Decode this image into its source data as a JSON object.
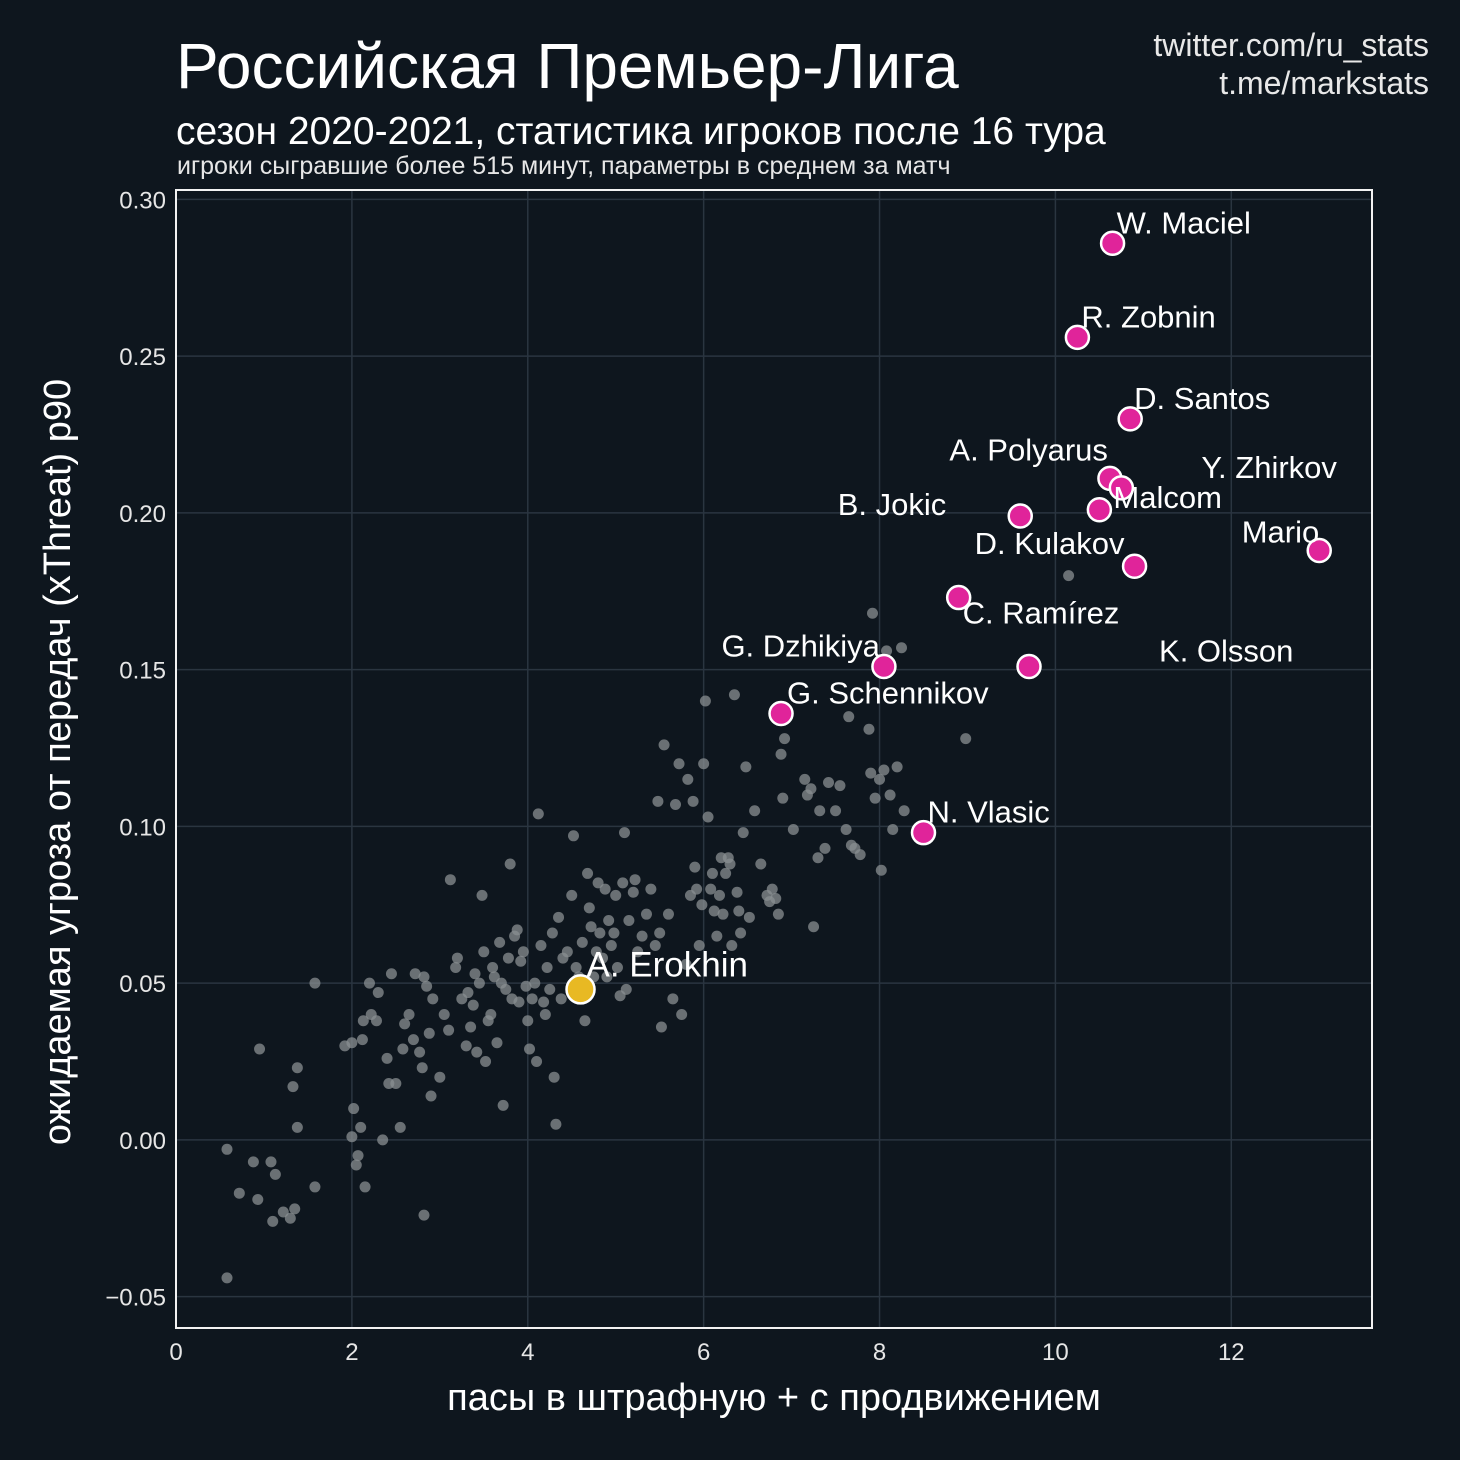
{
  "header": {
    "title": "Российская Премьер-Лига",
    "subtitle": "сезон 2020-2021, статистика игроков после 16 тура",
    "note": "игроки сыгравшие более 515 минут, параметры в среднем за матч",
    "credit_twitter": "twitter.com/ru_stats",
    "credit_telegram": "t.me/markstats"
  },
  "colors": {
    "background": "#0e161e",
    "frame": "#f2f2f2",
    "grid": "#2a3540",
    "background_points": "#8a8f91",
    "highlight": "#e0249a",
    "focus": "#e8b923"
  },
  "chart_data": {
    "type": "scatter",
    "xlabel": "пасы в штрафную + с продвижением",
    "ylabel": "ожидаемая угроза от передач (xThreat) p90",
    "xlim": [
      0,
      13.6
    ],
    "ylim": [
      -0.06,
      0.303
    ],
    "x_ticks": [
      0,
      2,
      4,
      6,
      8,
      10,
      12
    ],
    "y_ticks": [
      -0.05,
      0.0,
      0.05,
      0.1,
      0.15,
      0.2,
      0.25,
      0.3
    ],
    "y_tick_labels": [
      "−0.05",
      "0.00",
      "0.05",
      "0.10",
      "0.15",
      "0.20",
      "0.25",
      "0.30"
    ],
    "grid": true,
    "highlighted": [
      {
        "name": "W. Maciel",
        "x": 10.65,
        "y": 0.286
      },
      {
        "name": "R. Zobnin",
        "x": 10.25,
        "y": 0.256
      },
      {
        "name": "D. Santos",
        "x": 10.85,
        "y": 0.23
      },
      {
        "name": "A. Polyarus",
        "x": 10.62,
        "y": 0.211
      },
      {
        "name": "Y. Zhirkov",
        "x": 10.75,
        "y": 0.208
      },
      {
        "name": "B. Jokic",
        "x": 9.6,
        "y": 0.199
      },
      {
        "name": "Malcom",
        "x": 10.5,
        "y": 0.201
      },
      {
        "name": "Mario",
        "x": 13.0,
        "y": 0.188
      },
      {
        "name": "D. Kulakov",
        "x": 10.9,
        "y": 0.183
      },
      {
        "name": "C. Ramírez",
        "x": 8.9,
        "y": 0.173
      },
      {
        "name": "G. Dzhikiya",
        "x": 8.05,
        "y": 0.151
      },
      {
        "name": "K. Olsson",
        "x": 9.7,
        "y": 0.151
      },
      {
        "name": "G. Schennikov",
        "x": 6.88,
        "y": 0.136
      },
      {
        "name": "N. Vlasic",
        "x": 8.5,
        "y": 0.098
      }
    ],
    "focus": {
      "name": "A. Erokhin",
      "x": 4.6,
      "y": 0.048
    },
    "others": [
      [
        0.58,
        -0.044
      ],
      [
        0.58,
        -0.003
      ],
      [
        0.72,
        -0.017
      ],
      [
        0.88,
        -0.007
      ],
      [
        0.93,
        -0.019
      ],
      [
        0.95,
        0.029
      ],
      [
        1.08,
        -0.007
      ],
      [
        1.1,
        -0.026
      ],
      [
        1.13,
        -0.011
      ],
      [
        1.22,
        -0.023
      ],
      [
        1.3,
        -0.025
      ],
      [
        1.33,
        0.017
      ],
      [
        1.35,
        -0.022
      ],
      [
        1.38,
        0.004
      ],
      [
        1.38,
        0.023
      ],
      [
        1.58,
        0.05
      ],
      [
        1.58,
        -0.015
      ],
      [
        1.92,
        0.03
      ],
      [
        2.0,
        0.031
      ],
      [
        2.0,
        0.001
      ],
      [
        2.02,
        0.01
      ],
      [
        2.05,
        -0.008
      ],
      [
        2.07,
        -0.005
      ],
      [
        2.1,
        0.004
      ],
      [
        2.12,
        0.032
      ],
      [
        2.13,
        0.038
      ],
      [
        2.15,
        -0.015
      ],
      [
        2.2,
        0.05
      ],
      [
        2.22,
        0.04
      ],
      [
        2.28,
        0.038
      ],
      [
        2.3,
        0.047
      ],
      [
        2.35,
        -0.0
      ],
      [
        2.4,
        0.026
      ],
      [
        2.42,
        0.018
      ],
      [
        2.45,
        0.053
      ],
      [
        2.5,
        0.018
      ],
      [
        2.55,
        0.004
      ],
      [
        2.58,
        0.029
      ],
      [
        2.6,
        0.037
      ],
      [
        2.65,
        0.04
      ],
      [
        2.7,
        0.032
      ],
      [
        2.72,
        0.053
      ],
      [
        2.77,
        0.028
      ],
      [
        2.8,
        0.023
      ],
      [
        2.82,
        0.052
      ],
      [
        2.82,
        -0.024
      ],
      [
        2.85,
        0.049
      ],
      [
        2.88,
        0.034
      ],
      [
        2.9,
        0.014
      ],
      [
        2.92,
        0.045
      ],
      [
        3.0,
        0.02
      ],
      [
        3.05,
        0.04
      ],
      [
        3.1,
        0.035
      ],
      [
        3.12,
        0.083
      ],
      [
        3.18,
        0.055
      ],
      [
        3.2,
        0.058
      ],
      [
        3.25,
        0.045
      ],
      [
        3.3,
        0.03
      ],
      [
        3.32,
        0.047
      ],
      [
        3.35,
        0.036
      ],
      [
        3.38,
        0.043
      ],
      [
        3.4,
        0.053
      ],
      [
        3.42,
        0.028
      ],
      [
        3.45,
        0.05
      ],
      [
        3.48,
        0.078
      ],
      [
        3.5,
        0.06
      ],
      [
        3.52,
        0.025
      ],
      [
        3.55,
        0.038
      ],
      [
        3.58,
        0.04
      ],
      [
        3.6,
        0.055
      ],
      [
        3.62,
        0.052
      ],
      [
        3.65,
        0.031
      ],
      [
        3.68,
        0.063
      ],
      [
        3.7,
        0.05
      ],
      [
        3.72,
        0.011
      ],
      [
        3.75,
        0.048
      ],
      [
        3.78,
        0.058
      ],
      [
        3.8,
        0.088
      ],
      [
        3.82,
        0.045
      ],
      [
        3.85,
        0.065
      ],
      [
        3.88,
        0.067
      ],
      [
        3.9,
        0.044
      ],
      [
        3.92,
        0.057
      ],
      [
        3.95,
        0.06
      ],
      [
        3.98,
        0.049
      ],
      [
        4.0,
        0.038
      ],
      [
        4.02,
        0.029
      ],
      [
        4.05,
        0.045
      ],
      [
        4.08,
        0.05
      ],
      [
        4.1,
        0.025
      ],
      [
        4.12,
        0.104
      ],
      [
        4.15,
        0.062
      ],
      [
        4.18,
        0.044
      ],
      [
        4.2,
        0.04
      ],
      [
        4.22,
        0.055
      ],
      [
        4.25,
        0.048
      ],
      [
        4.28,
        0.066
      ],
      [
        4.3,
        0.02
      ],
      [
        4.32,
        0.005
      ],
      [
        4.35,
        0.071
      ],
      [
        4.38,
        0.045
      ],
      [
        4.4,
        0.058
      ],
      [
        4.45,
        0.06
      ],
      [
        4.5,
        0.078
      ],
      [
        4.52,
        0.097
      ],
      [
        4.55,
        0.055
      ],
      [
        4.58,
        0.052
      ],
      [
        4.62,
        0.063
      ],
      [
        4.65,
        0.038
      ],
      [
        4.68,
        0.085
      ],
      [
        4.7,
        0.074
      ],
      [
        4.72,
        0.068
      ],
      [
        4.75,
        0.052
      ],
      [
        4.78,
        0.06
      ],
      [
        4.8,
        0.082
      ],
      [
        4.82,
        0.066
      ],
      [
        4.85,
        0.058
      ],
      [
        4.88,
        0.08
      ],
      [
        4.9,
        0.052
      ],
      [
        4.92,
        0.07
      ],
      [
        4.95,
        0.062
      ],
      [
        4.98,
        0.066
      ],
      [
        5.0,
        0.078
      ],
      [
        5.02,
        0.055
      ],
      [
        5.05,
        0.046
      ],
      [
        5.08,
        0.082
      ],
      [
        5.1,
        0.098
      ],
      [
        5.12,
        0.048
      ],
      [
        5.15,
        0.07
      ],
      [
        5.2,
        0.079
      ],
      [
        5.22,
        0.083
      ],
      [
        5.25,
        0.06
      ],
      [
        5.3,
        0.065
      ],
      [
        5.35,
        0.072
      ],
      [
        5.4,
        0.08
      ],
      [
        5.45,
        0.062
      ],
      [
        5.48,
        0.108
      ],
      [
        5.5,
        0.066
      ],
      [
        5.52,
        0.036
      ],
      [
        5.55,
        0.126
      ],
      [
        5.6,
        0.072
      ],
      [
        5.65,
        0.045
      ],
      [
        5.68,
        0.107
      ],
      [
        5.72,
        0.12
      ],
      [
        5.75,
        0.04
      ],
      [
        5.8,
        0.056
      ],
      [
        5.82,
        0.115
      ],
      [
        5.85,
        0.078
      ],
      [
        5.88,
        0.108
      ],
      [
        5.9,
        0.087
      ],
      [
        5.92,
        0.08
      ],
      [
        5.95,
        0.062
      ],
      [
        5.98,
        0.075
      ],
      [
        6.0,
        0.12
      ],
      [
        6.02,
        0.14
      ],
      [
        6.05,
        0.103
      ],
      [
        6.08,
        0.08
      ],
      [
        6.1,
        0.085
      ],
      [
        6.12,
        0.073
      ],
      [
        6.15,
        0.065
      ],
      [
        6.18,
        0.078
      ],
      [
        6.2,
        0.09
      ],
      [
        6.22,
        0.072
      ],
      [
        6.25,
        0.085
      ],
      [
        6.28,
        0.09
      ],
      [
        6.3,
        0.088
      ],
      [
        6.32,
        0.062
      ],
      [
        6.35,
        0.142
      ],
      [
        6.38,
        0.079
      ],
      [
        6.4,
        0.073
      ],
      [
        6.42,
        0.066
      ],
      [
        6.45,
        0.098
      ],
      [
        6.48,
        0.119
      ],
      [
        6.52,
        0.071
      ],
      [
        6.58,
        0.105
      ],
      [
        6.65,
        0.088
      ],
      [
        6.72,
        0.078
      ],
      [
        6.75,
        0.076
      ],
      [
        6.78,
        0.08
      ],
      [
        6.82,
        0.077
      ],
      [
        6.85,
        0.072
      ],
      [
        6.88,
        0.123
      ],
      [
        6.9,
        0.109
      ],
      [
        6.92,
        0.128
      ],
      [
        7.02,
        0.099
      ],
      [
        7.15,
        0.115
      ],
      [
        7.18,
        0.11
      ],
      [
        7.22,
        0.112
      ],
      [
        7.25,
        0.068
      ],
      [
        7.3,
        0.09
      ],
      [
        7.32,
        0.105
      ],
      [
        7.38,
        0.093
      ],
      [
        7.42,
        0.114
      ],
      [
        7.5,
        0.105
      ],
      [
        7.55,
        0.113
      ],
      [
        7.62,
        0.099
      ],
      [
        7.65,
        0.135
      ],
      [
        7.68,
        0.094
      ],
      [
        7.72,
        0.093
      ],
      [
        7.78,
        0.091
      ],
      [
        7.88,
        0.131
      ],
      [
        7.9,
        0.117
      ],
      [
        7.92,
        0.168
      ],
      [
        7.95,
        0.109
      ],
      [
        8.0,
        0.115
      ],
      [
        8.02,
        0.086
      ],
      [
        8.05,
        0.118
      ],
      [
        8.08,
        0.156
      ],
      [
        8.12,
        0.11
      ],
      [
        8.15,
        0.099
      ],
      [
        8.2,
        0.119
      ],
      [
        8.25,
        0.157
      ],
      [
        8.28,
        0.105
      ],
      [
        8.98,
        0.128
      ],
      [
        10.15,
        0.18
      ]
    ]
  }
}
